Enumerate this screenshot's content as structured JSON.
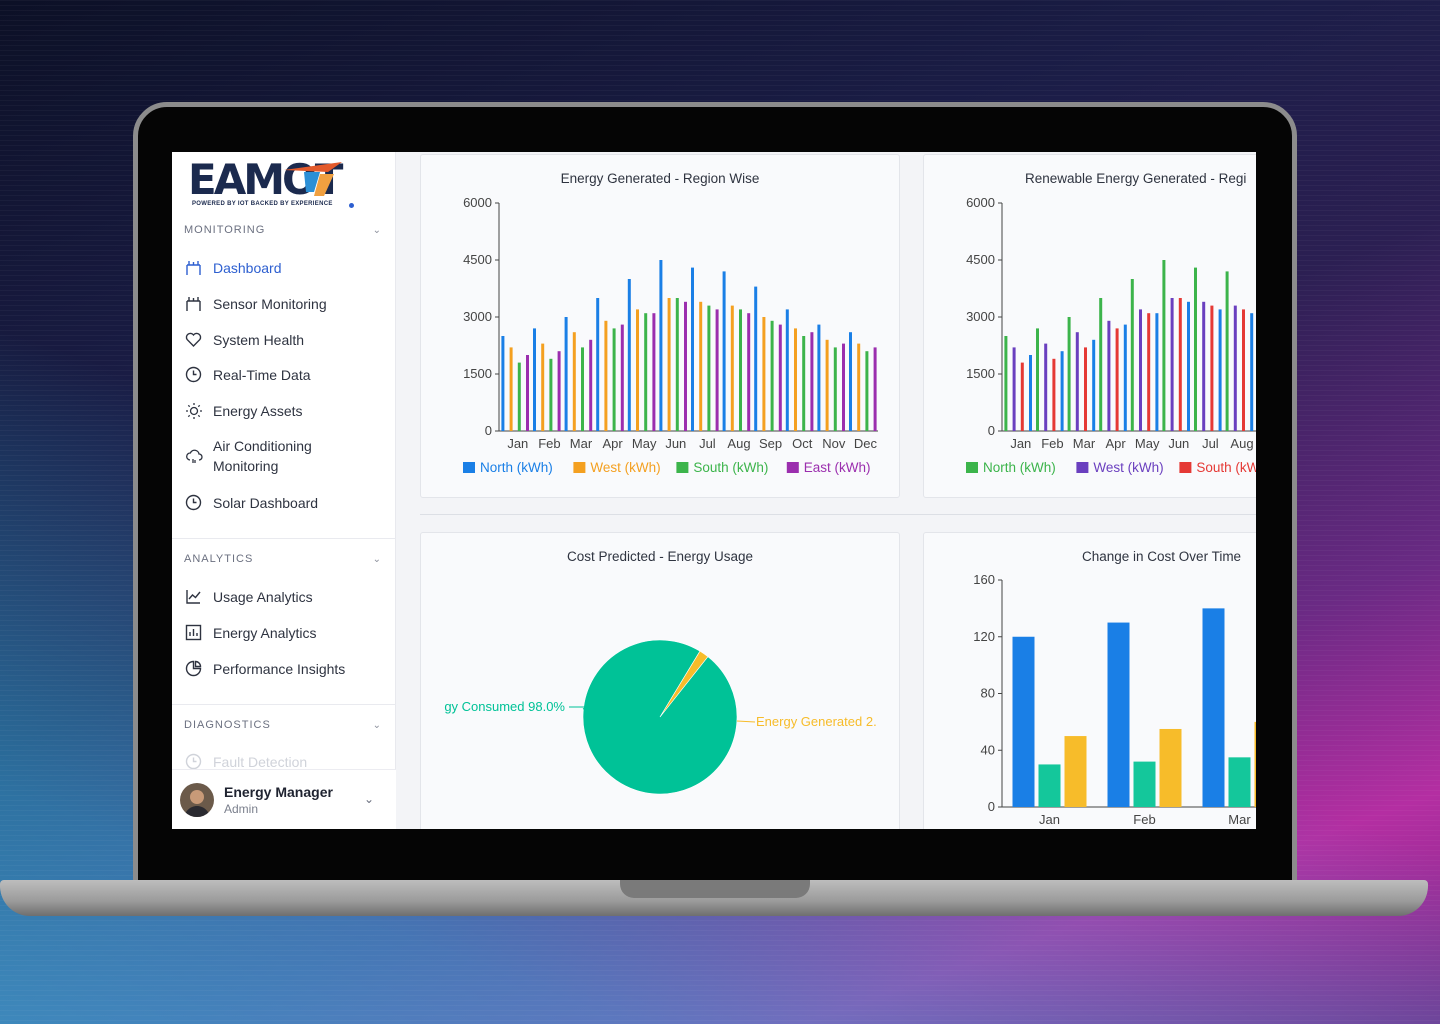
{
  "sidebar": {
    "logo_text": "EAMOT",
    "logo_tagline": "POWERED BY IOT BACKED BY EXPERIENCE",
    "sections": [
      {
        "title": "MONITORING",
        "items": [
          {
            "label": "Dashboard",
            "icon": "dashboard-icon",
            "active": true
          },
          {
            "label": "Sensor Monitoring",
            "icon": "sensor-icon"
          },
          {
            "label": "System Health",
            "icon": "heart-icon"
          },
          {
            "label": "Real-Time Data",
            "icon": "clock-icon"
          },
          {
            "label": "Energy Assets",
            "icon": "sun-icon"
          },
          {
            "label": "Air Conditioning Monitoring",
            "label_line1": "Air Conditioning",
            "label_line2": "Monitoring",
            "icon": "cloud-icon"
          },
          {
            "label": "Solar Dashboard",
            "icon": "clock-icon"
          }
        ]
      },
      {
        "title": "ANALYTICS",
        "items": [
          {
            "label": "Usage Analytics",
            "icon": "line-chart-icon"
          },
          {
            "label": "Energy Analytics",
            "icon": "bar-chart-icon"
          },
          {
            "label": "Performance Insights",
            "icon": "pie-chart-icon"
          }
        ]
      },
      {
        "title": "DIAGNOSTICS",
        "items": [
          {
            "label": "Fault Detection",
            "icon": "clock-icon"
          }
        ]
      }
    ],
    "user": {
      "name": "Energy Manager",
      "role": "Admin"
    }
  },
  "colors": {
    "north": "#1a7fe6",
    "west": "#f4a020",
    "south": "#3cb44b",
    "east": "#9b2eae",
    "ren_west": "#6a3fbf",
    "ren_south": "#e53935",
    "pie_consumed": "#00c297",
    "pie_generated": "#f7bc2a",
    "cost_blue": "#1a7fe6",
    "cost_teal": "#14c79b",
    "cost_yellow": "#f7bc2a",
    "active_nav": "#2d5fd0"
  },
  "chart_data": [
    {
      "type": "bar",
      "title": "Energy Generated - Region Wise",
      "categories": [
        "Jan",
        "Feb",
        "Mar",
        "Apr",
        "May",
        "Jun",
        "Jul",
        "Aug",
        "Sep",
        "Oct",
        "Nov",
        "Dec"
      ],
      "yticks": [
        "0",
        "1500",
        "3000",
        "4500",
        "6000"
      ],
      "ylim": [
        0,
        6000
      ],
      "series": [
        {
          "name": "North (kWh)",
          "values": [
            2500,
            2700,
            3000,
            3500,
            4000,
            4500,
            4300,
            4200,
            3800,
            3200,
            2800,
            2600
          ]
        },
        {
          "name": "West (kWh)",
          "values": [
            2200,
            2300,
            2600,
            2900,
            3200,
            3500,
            3400,
            3300,
            3000,
            2700,
            2400,
            2300
          ]
        },
        {
          "name": "South (kWh)",
          "values": [
            1800,
            1900,
            2200,
            2700,
            3100,
            3500,
            3300,
            3200,
            2900,
            2500,
            2200,
            2100
          ]
        },
        {
          "name": "East (kWh)",
          "values": [
            2000,
            2100,
            2400,
            2800,
            3100,
            3400,
            3200,
            3100,
            2800,
            2600,
            2300,
            2200
          ]
        }
      ],
      "legend": "bottom"
    },
    {
      "type": "bar",
      "title": "Renewable Energy Generated - Regi",
      "categories": [
        "Jan",
        "Feb",
        "Mar",
        "Apr",
        "May",
        "Jun",
        "Jul",
        "Aug"
      ],
      "yticks": [
        "0",
        "1500",
        "3000",
        "4500",
        "6000"
      ],
      "ylim": [
        0,
        6000
      ],
      "series": [
        {
          "name": "North (kWh)",
          "values": [
            2500,
            2700,
            3000,
            3500,
            4000,
            4500,
            4300,
            4200
          ]
        },
        {
          "name": "West (kWh)",
          "values": [
            2200,
            2300,
            2600,
            2900,
            3200,
            3500,
            3400,
            3300
          ]
        },
        {
          "name": "South (kWh",
          "values": [
            1800,
            1900,
            2200,
            2700,
            3100,
            3500,
            3300,
            3200
          ]
        },
        {
          "values": [
            2000,
            2100,
            2400,
            2800,
            3100,
            3400,
            3200,
            3100
          ]
        }
      ],
      "legend": "bottom"
    },
    {
      "type": "pie",
      "title": "Cost Predicted - Energy Usage",
      "slices": [
        {
          "label": "gy Consumed 98.0%",
          "value": 98.0
        },
        {
          "label": "Energy Generated 2.",
          "value": 2.0
        }
      ]
    },
    {
      "type": "bar",
      "title": "Change in Cost Over Time",
      "categories": [
        "Jan",
        "Feb",
        "Mar"
      ],
      "yticks": [
        "0",
        "40",
        "80",
        "120",
        "160"
      ],
      "ylim": [
        0,
        160
      ],
      "series": [
        {
          "values": [
            120,
            130,
            140
          ]
        },
        {
          "values": [
            30,
            32,
            35
          ]
        },
        {
          "values": [
            50,
            55,
            60
          ]
        }
      ]
    }
  ]
}
